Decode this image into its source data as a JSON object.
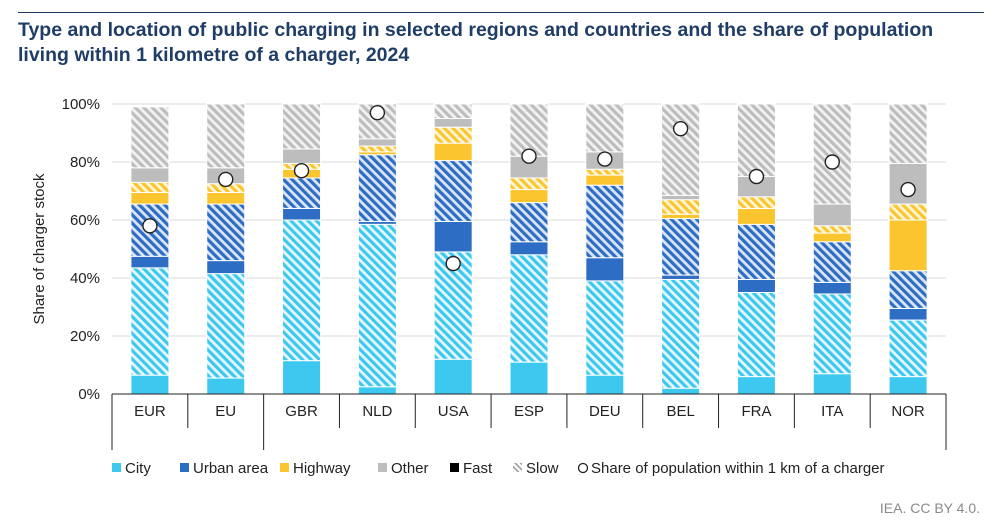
{
  "title": "Type and location of public charging in selected regions and countries and the share of population living within 1 kilometre of a charger, 2024",
  "credit": "IEA. CC BY 4.0.",
  "chart_data": {
    "type": "bar",
    "stacked": true,
    "ylabel": "Share of charger stock",
    "ylim": [
      0,
      100
    ],
    "yticks": [
      "0%",
      "20%",
      "40%",
      "60%",
      "80%",
      "100%"
    ],
    "grid": true,
    "categories": [
      "EUR",
      "EU",
      "GBR",
      "NLD",
      "USA",
      "ESP",
      "DEU",
      "BEL",
      "FRA",
      "ITA",
      "NOR"
    ],
    "legend_entries": [
      "City",
      "Urban area",
      "Highway",
      "Other",
      "Fast",
      "Slow",
      "Share of population within 1 km of a charger"
    ],
    "legend_position": "bottom",
    "series": [
      {
        "name": "City",
        "charger": "Fast",
        "color": "#3dc8f0",
        "values": [
          6.5,
          5.5,
          11.5,
          2.5,
          12,
          11,
          6.5,
          2,
          6,
          7,
          6
        ]
      },
      {
        "name": "City",
        "charger": "Slow",
        "color": "#3dc8f0",
        "values": [
          37,
          36,
          48.5,
          56,
          37,
          37,
          32.5,
          37.5,
          29,
          27.5,
          19.5
        ]
      },
      {
        "name": "Urban area",
        "charger": "Fast",
        "color": "#2e6dc4",
        "values": [
          4,
          4.5,
          4,
          1,
          10.5,
          4.5,
          8,
          1.5,
          4.5,
          4,
          4
        ]
      },
      {
        "name": "Urban area",
        "charger": "Slow",
        "color": "#2e6dc4",
        "values": [
          18,
          19.5,
          10.5,
          23,
          21,
          13.5,
          25,
          19.5,
          19,
          14,
          13
        ]
      },
      {
        "name": "Highway",
        "charger": "Fast",
        "color": "#fbc530",
        "values": [
          4,
          4,
          3,
          1,
          6,
          4.5,
          3.5,
          1.5,
          5.5,
          3,
          17.5
        ]
      },
      {
        "name": "Highway",
        "charger": "Slow",
        "color": "#fbc530",
        "values": [
          3.5,
          3,
          2,
          2,
          5.5,
          4,
          2,
          5,
          4,
          2.5,
          5.5
        ]
      },
      {
        "name": "Other",
        "charger": "Fast",
        "color": "#bdbdbd",
        "values": [
          5,
          5.5,
          5,
          2.5,
          3,
          7.5,
          6,
          1.5,
          7,
          7.5,
          14
        ]
      },
      {
        "name": "Other",
        "charger": "Slow",
        "color": "#bdbdbd",
        "values": [
          21,
          22,
          15.5,
          12,
          5,
          18,
          16.5,
          31.5,
          25,
          34.5,
          20.5
        ]
      }
    ],
    "population_share": [
      58,
      74,
      77,
      97,
      45,
      82,
      81,
      91.5,
      75,
      80,
      70.5
    ]
  }
}
